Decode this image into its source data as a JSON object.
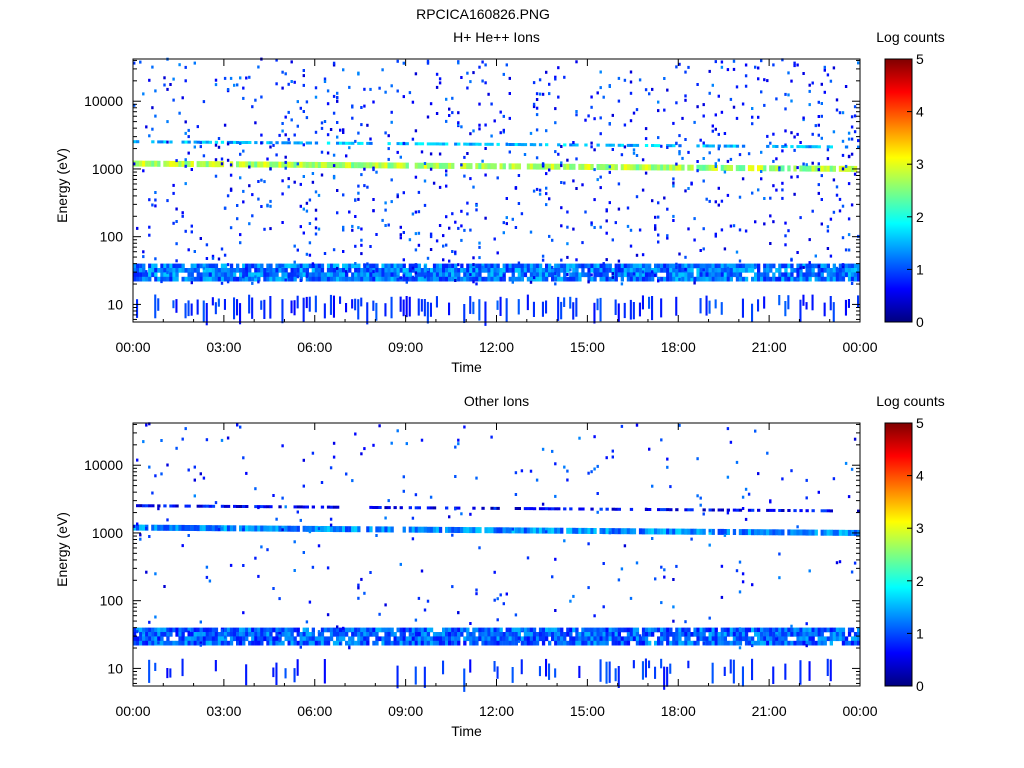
{
  "figure_title": "RPCICA160826.PNG",
  "colors": {
    "background": "#ffffff",
    "axis": "#000000",
    "colormap": [
      "#00007f",
      "#0000ff",
      "#007fff",
      "#00ffff",
      "#7fff7f",
      "#ffff00",
      "#ff7f00",
      "#ff0000",
      "#7f0000"
    ]
  },
  "chart_data": [
    {
      "type": "heatmap",
      "title": "H+ He++ Ions",
      "xlabel": "Time",
      "ylabel": "Energy (eV)",
      "yscale": "log",
      "ylim": [
        5.5,
        42000
      ],
      "xlim": [
        0,
        24
      ],
      "x_ticks": [
        0,
        3,
        6,
        9,
        12,
        15,
        18,
        21,
        24
      ],
      "x_tick_labels": [
        "00:00",
        "03:00",
        "06:00",
        "09:00",
        "12:00",
        "15:00",
        "18:00",
        "21:00",
        "00:00"
      ],
      "y_ticks": [
        10,
        100,
        1000,
        10000
      ],
      "y_tick_labels": [
        "10",
        "100",
        "1000",
        "10000"
      ],
      "colorbar": {
        "label": "Log counts",
        "range": [
          0,
          5
        ],
        "tick_labels": [
          "0",
          "1",
          "2",
          "3",
          "4",
          "5"
        ]
      },
      "grid": false,
      "features": [
        {
          "name": "main ion band",
          "energy_start": 1200,
          "energy_end": 1000,
          "log_counts": 2.7
        },
        {
          "name": "secondary band",
          "energy_start": 2400,
          "energy_end": 2000,
          "log_counts": 1.5
        },
        {
          "name": "low energy band",
          "energy_low": 22,
          "energy_high": 40,
          "log_counts": 1.2
        }
      ],
      "background_density": 0.08
    },
    {
      "type": "heatmap",
      "title": "Other Ions",
      "xlabel": "Time",
      "ylabel": "Energy (eV)",
      "yscale": "log",
      "ylim": [
        5.5,
        42000
      ],
      "xlim": [
        0,
        24
      ],
      "x_ticks": [
        0,
        3,
        6,
        9,
        12,
        15,
        18,
        21,
        24
      ],
      "x_tick_labels": [
        "00:00",
        "03:00",
        "06:00",
        "09:00",
        "12:00",
        "15:00",
        "18:00",
        "21:00",
        "00:00"
      ],
      "y_ticks": [
        10,
        100,
        1000,
        10000
      ],
      "y_tick_labels": [
        "10",
        "100",
        "1000",
        "10000"
      ],
      "colorbar": {
        "label": "Log counts",
        "range": [
          0,
          5
        ],
        "tick_labels": [
          "0",
          "1",
          "2",
          "3",
          "4",
          "5"
        ]
      },
      "grid": false,
      "features": [
        {
          "name": "main ion band",
          "energy_start": 1200,
          "energy_end": 1000,
          "log_counts": 1.3
        },
        {
          "name": "secondary band",
          "energy_start": 2400,
          "energy_end": 2000,
          "log_counts": 0.6
        },
        {
          "name": "low energy band",
          "energy_low": 22,
          "energy_high": 40,
          "log_counts": 1.1
        }
      ],
      "background_density": 0.025
    }
  ]
}
